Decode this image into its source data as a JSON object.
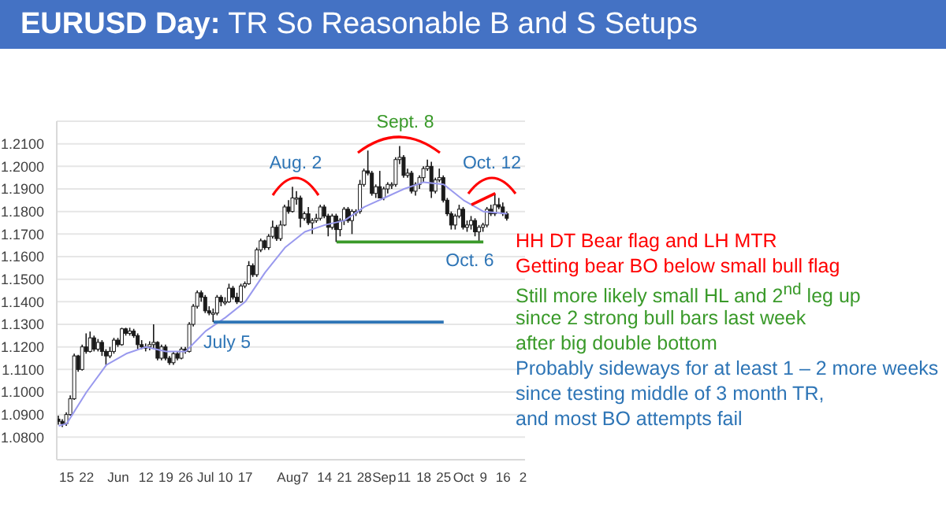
{
  "chart_data": {
    "type": "candlestick",
    "title": "EURUSD Day: TR So Reasonable B and S Setups",
    "color": "#1a1a1a",
    "categories": [
      null,
      null,
      "15",
      null,
      null,
      null,
      null,
      "22",
      null,
      null,
      null,
      null,
      null,
      null,
      null,
      "Jun",
      null,
      null,
      null,
      null,
      null,
      null,
      "12",
      null,
      null,
      null,
      null,
      "19",
      null,
      null,
      null,
      null,
      "26",
      null,
      null,
      null,
      null,
      "Jul",
      null,
      null,
      null,
      null,
      "10",
      null,
      null,
      null,
      null,
      "17",
      null,
      null,
      null,
      null,
      null,
      null,
      null,
      null,
      null,
      null,
      "Aug",
      null,
      null,
      null,
      "7",
      null,
      null,
      null,
      null,
      "14",
      null,
      null,
      null,
      null,
      "21",
      null,
      null,
      null,
      null,
      "28",
      null,
      null,
      null,
      null,
      "Sep",
      null,
      null,
      null,
      null,
      "11",
      null,
      null,
      null,
      null,
      "18",
      null,
      null,
      null,
      null,
      "25",
      null,
      null,
      null,
      null,
      "Oct",
      null,
      null,
      null,
      null,
      "9",
      null,
      null,
      null,
      null,
      "16",
      null,
      null,
      null,
      null,
      "2"
    ],
    "ohlc": [
      [
        1.088,
        1.0895,
        1.0855,
        1.087
      ],
      [
        1.087,
        1.088,
        1.0845,
        1.086
      ],
      [
        1.086,
        1.091,
        1.085,
        1.09
      ],
      [
        1.09,
        1.0985,
        1.0895,
        1.097
      ],
      [
        1.097,
        1.117,
        1.0965,
        1.116
      ],
      [
        1.116,
        1.1165,
        1.109,
        1.11
      ],
      [
        1.11,
        1.121,
        1.1095,
        1.12
      ],
      [
        1.12,
        1.126,
        1.117,
        1.118
      ],
      [
        1.118,
        1.1268,
        1.1175,
        1.124
      ],
      [
        1.124,
        1.125,
        1.118,
        1.119
      ],
      [
        1.119,
        1.1235,
        1.118,
        1.122
      ],
      [
        1.122,
        1.123,
        1.116,
        1.118
      ],
      [
        1.118,
        1.119,
        1.112,
        1.116
      ],
      [
        1.116,
        1.12,
        1.115,
        1.118
      ],
      [
        1.118,
        1.124,
        1.117,
        1.123
      ],
      [
        1.123,
        1.124,
        1.12,
        1.121
      ],
      [
        1.121,
        1.1285,
        1.1205,
        1.128
      ],
      [
        1.128,
        1.1285,
        1.125,
        1.126
      ],
      [
        1.126,
        1.1285,
        1.125,
        1.127
      ],
      [
        1.127,
        1.128,
        1.124,
        1.125
      ],
      [
        1.125,
        1.126,
        1.119,
        1.121
      ],
      [
        1.121,
        1.123,
        1.119,
        1.12
      ],
      [
        1.12,
        1.1215,
        1.118,
        1.12
      ],
      [
        1.12,
        1.1225,
        1.1185,
        1.121
      ],
      [
        1.121,
        1.13,
        1.119,
        1.122
      ],
      [
        1.122,
        1.1225,
        1.114,
        1.115
      ],
      [
        1.115,
        1.121,
        1.114,
        1.12
      ],
      [
        1.12,
        1.121,
        1.114,
        1.115
      ],
      [
        1.115,
        1.116,
        1.112,
        1.113
      ],
      [
        1.113,
        1.118,
        1.112,
        1.117
      ],
      [
        1.117,
        1.118,
        1.114,
        1.115
      ],
      [
        1.115,
        1.12,
        1.1145,
        1.119
      ],
      [
        1.119,
        1.12,
        1.117,
        1.118
      ],
      [
        1.118,
        1.131,
        1.1175,
        1.13
      ],
      [
        1.13,
        1.139,
        1.129,
        1.138
      ],
      [
        1.138,
        1.145,
        1.137,
        1.144
      ],
      [
        1.144,
        1.145,
        1.14,
        1.142
      ],
      [
        1.142,
        1.143,
        1.135,
        1.136
      ],
      [
        1.136,
        1.138,
        1.134,
        1.135
      ],
      [
        1.135,
        1.137,
        1.131,
        1.135
      ],
      [
        1.135,
        1.143,
        1.134,
        1.142
      ],
      [
        1.142,
        1.143,
        1.138,
        1.14
      ],
      [
        1.14,
        1.142,
        1.1385,
        1.14
      ],
      [
        1.14,
        1.148,
        1.1395,
        1.146
      ],
      [
        1.146,
        1.147,
        1.141,
        1.142
      ],
      [
        1.142,
        1.144,
        1.139,
        1.14
      ],
      [
        1.14,
        1.148,
        1.1395,
        1.147
      ],
      [
        1.147,
        1.149,
        1.146,
        1.148
      ],
      [
        1.148,
        1.158,
        1.1475,
        1.156
      ],
      [
        1.156,
        1.157,
        1.151,
        1.152
      ],
      [
        1.152,
        1.164,
        1.151,
        1.163
      ],
      [
        1.163,
        1.168,
        1.162,
        1.167
      ],
      [
        1.167,
        1.1675,
        1.163,
        1.164
      ],
      [
        1.164,
        1.17,
        1.163,
        1.169
      ],
      [
        1.169,
        1.176,
        1.168,
        1.173
      ],
      [
        1.173,
        1.174,
        1.167,
        1.168
      ],
      [
        1.168,
        1.176,
        1.167,
        1.174
      ],
      [
        1.174,
        1.183,
        1.1735,
        1.182
      ],
      [
        1.182,
        1.185,
        1.179,
        1.18
      ],
      [
        1.18,
        1.191,
        1.1795,
        1.186
      ],
      [
        1.186,
        1.189,
        1.183,
        1.186
      ],
      [
        1.186,
        1.187,
        1.173,
        1.177
      ],
      [
        1.177,
        1.18,
        1.176,
        1.179
      ],
      [
        1.179,
        1.182,
        1.174,
        1.175
      ],
      [
        1.175,
        1.177,
        1.17,
        1.176
      ],
      [
        1.176,
        1.179,
        1.175,
        1.177
      ],
      [
        1.177,
        1.183,
        1.176,
        1.182
      ],
      [
        1.182,
        1.183,
        1.177,
        1.178
      ],
      [
        1.178,
        1.179,
        1.169,
        1.173
      ],
      [
        1.173,
        1.179,
        1.172,
        1.178
      ],
      [
        1.178,
        1.179,
        1.1665,
        1.172
      ],
      [
        1.172,
        1.177,
        1.169,
        1.176
      ],
      [
        1.176,
        1.182,
        1.174,
        1.181
      ],
      [
        1.181,
        1.182,
        1.175,
        1.176
      ],
      [
        1.176,
        1.181,
        1.17,
        1.18
      ],
      [
        1.18,
        1.181,
        1.178,
        1.18
      ],
      [
        1.18,
        1.194,
        1.179,
        1.192
      ],
      [
        1.192,
        1.199,
        1.191,
        1.198
      ],
      [
        1.198,
        1.207,
        1.196,
        1.197
      ],
      [
        1.197,
        1.198,
        1.187,
        1.188
      ],
      [
        1.188,
        1.192,
        1.186,
        1.191
      ],
      [
        1.191,
        1.198,
        1.186,
        1.186
      ],
      [
        1.186,
        1.191,
        1.185,
        1.19
      ],
      [
        1.19,
        1.193,
        1.188,
        1.192
      ],
      [
        1.192,
        1.193,
        1.19,
        1.192
      ],
      [
        1.192,
        1.204,
        1.191,
        1.203
      ],
      [
        1.203,
        1.209,
        1.201,
        1.204
      ],
      [
        1.204,
        1.205,
        1.195,
        1.196
      ],
      [
        1.196,
        1.199,
        1.195,
        1.197
      ],
      [
        1.197,
        1.198,
        1.188,
        1.189
      ],
      [
        1.189,
        1.193,
        1.187,
        1.192
      ],
      [
        1.192,
        1.196,
        1.19,
        1.195
      ],
      [
        1.195,
        1.2,
        1.193,
        1.199
      ],
      [
        1.199,
        1.203,
        1.198,
        1.2
      ],
      [
        1.2,
        1.202,
        1.186,
        1.189
      ],
      [
        1.189,
        1.195,
        1.188,
        1.194
      ],
      [
        1.194,
        1.199,
        1.193,
        1.195
      ],
      [
        1.195,
        1.196,
        1.184,
        1.185
      ],
      [
        1.185,
        1.186,
        1.178,
        1.179
      ],
      [
        1.179,
        1.18,
        1.172,
        1.174
      ],
      [
        1.174,
        1.179,
        1.172,
        1.178
      ],
      [
        1.178,
        1.183,
        1.177,
        1.181
      ],
      [
        1.181,
        1.182,
        1.172,
        1.173
      ],
      [
        1.173,
        1.176,
        1.171,
        1.174
      ],
      [
        1.174,
        1.178,
        1.172,
        1.176
      ],
      [
        1.176,
        1.177,
        1.169,
        1.171
      ],
      [
        1.171,
        1.174,
        1.1665,
        1.173
      ],
      [
        1.173,
        1.175,
        1.171,
        1.174
      ],
      [
        1.174,
        1.182,
        1.173,
        1.181
      ],
      [
        1.181,
        1.183,
        1.178,
        1.179
      ],
      [
        1.179,
        1.188,
        1.178,
        1.183
      ],
      [
        1.183,
        1.186,
        1.181,
        1.182
      ],
      [
        1.182,
        1.184,
        1.178,
        1.179
      ],
      [
        1.179,
        1.18,
        1.176,
        1.177
      ],
      null,
      null,
      null,
      null
    ],
    "series": [
      {
        "type": "line",
        "color": "#9999ee",
        "values": [
          1.085,
          null,
          1.086,
          null,
          null,
          null,
          null,
          1.1,
          null,
          null,
          null,
          null,
          1.112,
          null,
          null,
          null,
          null,
          1.117,
          null,
          null,
          null,
          null,
          1.12,
          null,
          null,
          null,
          null,
          1.118,
          null,
          null,
          null,
          null,
          1.118,
          null,
          null,
          null,
          null,
          1.127,
          null,
          null,
          null,
          null,
          1.133,
          null,
          null,
          null,
          null,
          1.14,
          null,
          null,
          null,
          null,
          1.153,
          null,
          null,
          null,
          null,
          1.164,
          null,
          null,
          null,
          null,
          1.171,
          null,
          null,
          null,
          null,
          1.174,
          null,
          null,
          null,
          null,
          1.176,
          null,
          null,
          null,
          null,
          1.182,
          null,
          null,
          null,
          null,
          1.186,
          null,
          null,
          null,
          null,
          1.19,
          null,
          null,
          null,
          null,
          1.193,
          null,
          null,
          null,
          null,
          1.192,
          null,
          null,
          null,
          null,
          1.185,
          null,
          null,
          null,
          null,
          1.18,
          null,
          null,
          null,
          null,
          null,
          1.179,
          null,
          null,
          null,
          null
        ]
      },
      {
        "type": "line",
        "color": "#2e75b6",
        "values": [
          null,
          null,
          null,
          null,
          null,
          null,
          null,
          null,
          null,
          null,
          null,
          null,
          null,
          null,
          null,
          null,
          null,
          null,
          null,
          null,
          null,
          null,
          null,
          null,
          null,
          null,
          null,
          null,
          null,
          null,
          null,
          null,
          null,
          null,
          null,
          null,
          null,
          null,
          null,
          1.131,
          1.131,
          1.131,
          1.131,
          1.131,
          1.131,
          1.131,
          1.131,
          1.131,
          1.131,
          1.131,
          1.131,
          1.131,
          1.131,
          1.131,
          1.131,
          1.131,
          1.131,
          1.131,
          1.131,
          1.131,
          1.131,
          1.131,
          1.131,
          1.131,
          1.131,
          1.131,
          1.131,
          1.131,
          1.131,
          1.131,
          1.131,
          1.131,
          1.131,
          1.131,
          1.131,
          1.131,
          1.131,
          1.131,
          1.131,
          1.131,
          1.131,
          1.131,
          1.131,
          1.131,
          1.131,
          1.131,
          1.131,
          1.131,
          1.131,
          1.131,
          1.131,
          1.131,
          1.131,
          1.131,
          1.131,
          1.131,
          1.131,
          1.131,
          null,
          null,
          null,
          null,
          null,
          null,
          null,
          null,
          null,
          null,
          null,
          null,
          null,
          null,
          null,
          null,
          null,
          null,
          null,
          null
        ]
      },
      {
        "type": "line",
        "color": "#3a9a2a",
        "values": [
          null,
          null,
          null,
          null,
          null,
          null,
          null,
          null,
          null,
          null,
          null,
          null,
          null,
          null,
          null,
          null,
          null,
          null,
          null,
          null,
          null,
          null,
          null,
          null,
          null,
          null,
          null,
          null,
          null,
          null,
          null,
          null,
          null,
          null,
          null,
          null,
          null,
          null,
          null,
          null,
          null,
          null,
          null,
          null,
          null,
          null,
          null,
          null,
          null,
          null,
          null,
          null,
          null,
          null,
          null,
          null,
          null,
          null,
          null,
          null,
          null,
          null,
          null,
          null,
          null,
          null,
          null,
          null,
          null,
          null,
          1.1665,
          1.1665,
          1.1665,
          1.1665,
          1.1665,
          1.1665,
          1.1665,
          1.1665,
          1.1665,
          1.1665,
          1.1665,
          1.1665,
          1.1665,
          1.1665,
          1.1665,
          1.1665,
          1.1665,
          1.1665,
          1.1665,
          1.1665,
          1.1665,
          1.1665,
          1.1665,
          1.1665,
          1.1665,
          1.1665,
          1.1665,
          1.1665,
          1.1665,
          1.1665,
          1.1665,
          1.1665,
          1.1665,
          1.1665,
          1.1665,
          1.1665,
          1.1665,
          1.1665,
          null,
          null,
          null,
          null,
          null,
          null,
          null,
          null,
          null,
          null
        ]
      },
      {
        "type": "line",
        "color": "#ff0000",
        "values": [
          null,
          null,
          null,
          null,
          null,
          null,
          null,
          null,
          null,
          null,
          null,
          null,
          null,
          null,
          null,
          null,
          null,
          null,
          null,
          null,
          null,
          null,
          null,
          null,
          null,
          null,
          null,
          null,
          null,
          null,
          null,
          null,
          null,
          null,
          null,
          null,
          null,
          null,
          null,
          null,
          null,
          null,
          null,
          null,
          null,
          null,
          null,
          null,
          null,
          null,
          null,
          null,
          null,
          null,
          null,
          null,
          null,
          null,
          null,
          null,
          null,
          null,
          null,
          null,
          null,
          null,
          null,
          null,
          null,
          null,
          null,
          null,
          null,
          null,
          null,
          null,
          null,
          null,
          null,
          null,
          null,
          null,
          null,
          null,
          null,
          null,
          null,
          null,
          null,
          null,
          null,
          null,
          null,
          null,
          null,
          null,
          null,
          null,
          null,
          null,
          null,
          null,
          null,
          null,
          1.183,
          null,
          null,
          null,
          null,
          null,
          1.188,
          null,
          null,
          null,
          null,
          null,
          null,
          null
        ]
      }
    ],
    "ylim": [
      1.07,
      1.22
    ],
    "yticks": [
      {
        "value": 1.08,
        "label": "1.0800"
      },
      {
        "value": 1.09,
        "label": "1.0900"
      },
      {
        "value": 1.1,
        "label": "1.1000"
      },
      {
        "value": 1.11,
        "label": "1.1100"
      },
      {
        "value": 1.12,
        "label": "1.1200"
      },
      {
        "value": 1.13,
        "label": "1.1300"
      },
      {
        "value": 1.14,
        "label": "1.1400"
      },
      {
        "value": 1.15,
        "label": "1.1500"
      },
      {
        "value": 1.16,
        "label": "1.1600"
      },
      {
        "value": 1.17,
        "label": "1.1700"
      },
      {
        "value": 1.18,
        "label": "1.1800"
      },
      {
        "value": 1.19,
        "label": "1.1900"
      },
      {
        "value": 1.2,
        "label": "1.2000"
      },
      {
        "value": 1.21,
        "label": "1.2100"
      }
    ],
    "grid": "y",
    "annotations": [
      "Aug. 2",
      "Sept. 8",
      "Oct. 12",
      "July 5",
      "Oct. 6",
      "HH DT Bear flag and LH MTR",
      "Getting bear BO below small bull flag",
      "Still more likely small HL and 2$^{nd}$ leg up",
      "since 2 strong bull bars last week",
      "after big double bottom",
      "Probably sideways for at least 1 – 2 more weeks",
      "since testing middle of 3 month TR,",
      "and most BO attempts fail"
    ]
  }
}
